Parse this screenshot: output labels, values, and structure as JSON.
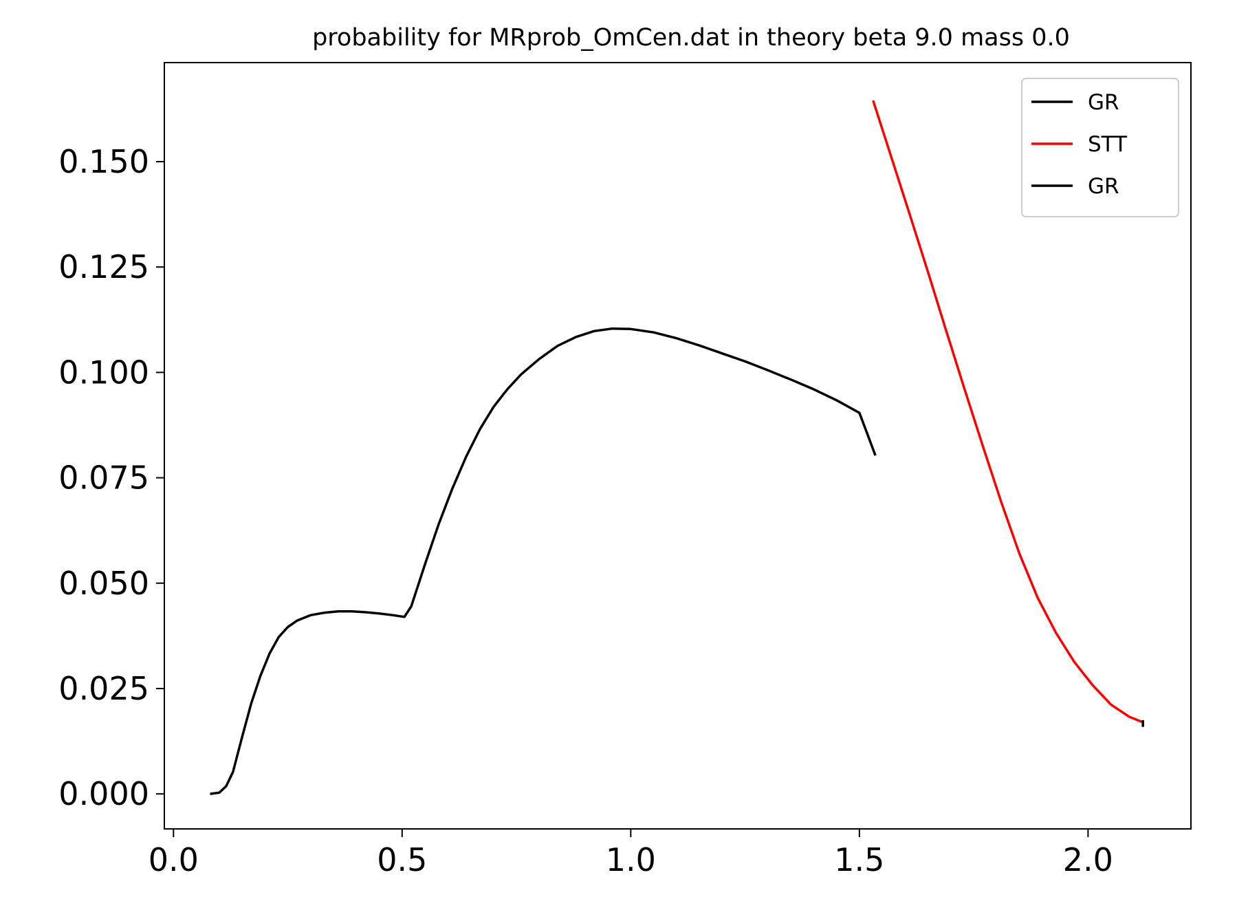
{
  "chart_data": {
    "type": "line",
    "title": "probability for MRprob_OmCen.dat in theory beta 9.0 mass 0.0",
    "xlabel": "",
    "ylabel": "",
    "xlim": [
      -0.02,
      2.225
    ],
    "ylim": [
      -0.0083,
      0.1735
    ],
    "xticks": [
      0.0,
      0.5,
      1.0,
      1.5,
      2.0
    ],
    "xtick_labels": [
      "0.0",
      "0.5",
      "1.0",
      "1.5",
      "2.0"
    ],
    "yticks": [
      0.0,
      0.025,
      0.05,
      0.075,
      0.1,
      0.125,
      0.15
    ],
    "ytick_labels": [
      "0.000",
      "0.025",
      "0.050",
      "0.075",
      "0.100",
      "0.125",
      "0.150"
    ],
    "grid": false,
    "legend_position": "top-right",
    "series": [
      {
        "name": "GR",
        "color": "#000000",
        "x": [
          0.08,
          0.1,
          0.115,
          0.13,
          0.15,
          0.17,
          0.19,
          0.21,
          0.23,
          0.25,
          0.27,
          0.3,
          0.33,
          0.36,
          0.39,
          0.42,
          0.45,
          0.48,
          0.505,
          0.52,
          0.55,
          0.58,
          0.61,
          0.64,
          0.67,
          0.7,
          0.73,
          0.76,
          0.8,
          0.84,
          0.88,
          0.92,
          0.96,
          1.0,
          1.05,
          1.1,
          1.15,
          1.2,
          1.25,
          1.3,
          1.35,
          1.4,
          1.45,
          1.5,
          1.535
        ],
        "y": [
          0.0,
          0.0003,
          0.0018,
          0.0052,
          0.0135,
          0.0215,
          0.028,
          0.0333,
          0.0372,
          0.0396,
          0.0411,
          0.0424,
          0.043,
          0.0433,
          0.0433,
          0.0431,
          0.0428,
          0.0424,
          0.042,
          0.0445,
          0.0545,
          0.064,
          0.0725,
          0.08,
          0.0865,
          0.0918,
          0.096,
          0.0995,
          0.1032,
          0.1063,
          0.1084,
          0.1098,
          0.1104,
          0.1103,
          0.1095,
          0.1081,
          0.1064,
          0.1045,
          0.1026,
          0.1005,
          0.0983,
          0.096,
          0.0934,
          0.0904,
          0.0803
        ]
      },
      {
        "name": "STT",
        "color": "#ff0000",
        "x": [
          1.53,
          1.57,
          1.61,
          1.65,
          1.69,
          1.73,
          1.77,
          1.81,
          1.85,
          1.89,
          1.93,
          1.97,
          2.01,
          2.05,
          2.09,
          2.12
        ],
        "y": [
          0.1645,
          0.151,
          0.1375,
          0.1238,
          0.1098,
          0.096,
          0.0825,
          0.0693,
          0.057,
          0.0465,
          0.0382,
          0.0313,
          0.0258,
          0.0212,
          0.0183,
          0.017
        ]
      },
      {
        "name": "GR",
        "color": "#000000",
        "x": [
          2.12,
          2.12
        ],
        "y": [
          0.0175,
          0.0159
        ]
      }
    ]
  }
}
